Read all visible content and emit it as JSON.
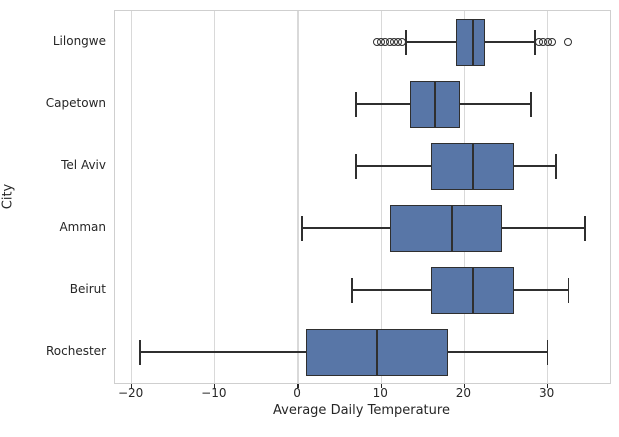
{
  "chart_data": {
    "type": "boxplot",
    "orientation": "horizontal",
    "title": "",
    "xlabel": "Average Daily Temperature",
    "ylabel": "City",
    "categories": [
      "Lilongwe",
      "Capetown",
      "Tel Aviv",
      "Amman",
      "Beirut",
      "Rochester"
    ],
    "series": [
      {
        "city": "Lilongwe",
        "low": 13,
        "q1": 19,
        "median": 21,
        "q3": 22.5,
        "high": 28.5,
        "outliers": [
          9.5,
          10,
          10.5,
          11,
          11.5,
          12,
          12.5,
          29,
          29.5,
          30,
          30.5,
          32.5
        ]
      },
      {
        "city": "Capetown",
        "low": 7,
        "q1": 13.5,
        "median": 16.5,
        "q3": 19.5,
        "high": 28,
        "outliers": []
      },
      {
        "city": "Tel Aviv",
        "low": 7,
        "q1": 16,
        "median": 21,
        "q3": 26,
        "high": 31,
        "outliers": []
      },
      {
        "city": "Amman",
        "low": 0.5,
        "q1": 11,
        "median": 18.5,
        "q3": 24.5,
        "high": 34.5,
        "outliers": []
      },
      {
        "city": "Beirut",
        "low": 6.5,
        "q1": 16,
        "median": 21,
        "q3": 26,
        "high": 32.5,
        "outliers": []
      },
      {
        "city": "Rochester",
        "low": -19,
        "q1": 1,
        "median": 9.5,
        "q3": 18,
        "high": 30,
        "outliers": []
      }
    ],
    "xlim": [
      -22,
      37.5
    ],
    "x_tick_values": [
      -20,
      -10,
      0,
      10,
      20,
      30
    ],
    "x_tick_labels": [
      "−20",
      "−10",
      "0",
      "10",
      "20",
      "30"
    ],
    "grid": "vertical-gridlines-on",
    "legend": "none",
    "colors": {
      "box_fill": "#5876a7",
      "line": "#2f2f2f",
      "grid": "#d9d9d9",
      "spine": "#cfcfcf",
      "text": "#262626",
      "background": "#ffffff"
    }
  }
}
